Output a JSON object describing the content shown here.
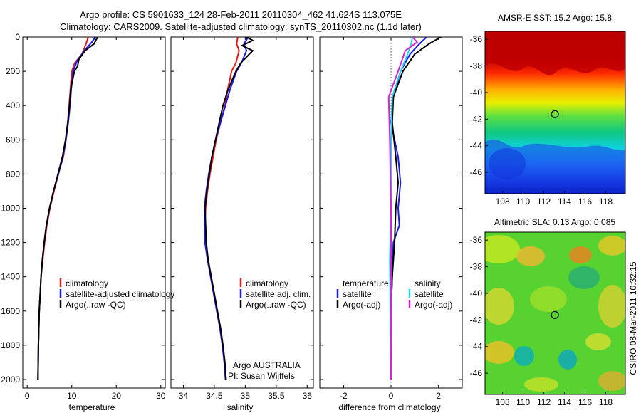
{
  "header": {
    "line1": "Argo profile: CS 5901633_124 28-Feb-2011 20110304_462 41.624S 113.075E",
    "line2": "Climatology: CARS2009. Satellite-adjusted climatology: synTS_20110302.nc (1.1d later)"
  },
  "side_label": "CSIRO 08-Mar-2011 10:32:15",
  "colors": {
    "red": "#e41a1a",
    "blue": "#1a1aee",
    "black": "#000000",
    "cyan": "#22d8e8",
    "magenta": "#d820d8"
  },
  "chart_data": [
    {
      "type": "line",
      "name": "temperature-profile",
      "xlabel": "temperature",
      "xlim": [
        -1,
        31
      ],
      "xticks": [
        0,
        10,
        20,
        30
      ],
      "ylim": [
        0,
        2050
      ],
      "yticks": [
        0,
        200,
        400,
        600,
        800,
        1000,
        1200,
        1400,
        1600,
        1800,
        2000
      ],
      "y_reversed": true,
      "legend": [
        "climatology",
        "satellite-adjusted climatology",
        "Argo(..raw -QC)"
      ],
      "series": [
        {
          "name": "climatology",
          "color": "red",
          "points": [
            [
              13.7,
              0
            ],
            [
              13.2,
              40
            ],
            [
              12.3,
              100
            ],
            [
              10.7,
              150
            ],
            [
              10.0,
              200
            ],
            [
              9.7,
              300
            ],
            [
              9.4,
              400
            ],
            [
              9.1,
              500
            ],
            [
              8.7,
              600
            ],
            [
              8.1,
              700
            ],
            [
              7.0,
              800
            ],
            [
              6.0,
              900
            ],
            [
              5.1,
              1000
            ],
            [
              4.4,
              1100
            ],
            [
              3.9,
              1200
            ],
            [
              3.5,
              1300
            ],
            [
              3.1,
              1400
            ],
            [
              2.9,
              1500
            ],
            [
              2.7,
              1600
            ],
            [
              2.6,
              1700
            ],
            [
              2.5,
              1800
            ],
            [
              2.45,
              1900
            ],
            [
              2.4,
              2000
            ]
          ]
        },
        {
          "name": "satellite-adjusted climatology",
          "color": "blue",
          "points": [
            [
              15.3,
              0
            ],
            [
              14.5,
              30
            ],
            [
              12.8,
              80
            ],
            [
              11.2,
              140
            ],
            [
              10.3,
              200
            ],
            [
              9.9,
              300
            ],
            [
              9.6,
              400
            ],
            [
              9.2,
              500
            ],
            [
              8.7,
              600
            ],
            [
              8.0,
              700
            ],
            [
              7.0,
              800
            ],
            [
              5.9,
              900
            ],
            [
              5.0,
              1000
            ],
            [
              4.3,
              1100
            ],
            [
              3.8,
              1200
            ],
            [
              3.4,
              1300
            ],
            [
              3.1,
              1400
            ],
            [
              2.9,
              1500
            ],
            [
              2.7,
              1600
            ],
            [
              2.6,
              1700
            ],
            [
              2.5,
              1800
            ],
            [
              2.45,
              1900
            ],
            [
              2.4,
              2000
            ]
          ]
        },
        {
          "name": "Argo(..raw -QC)",
          "color": "black",
          "points": [
            [
              15.8,
              0
            ],
            [
              15.0,
              40
            ],
            [
              13.0,
              80
            ],
            [
              11.6,
              130
            ],
            [
              11.3,
              170
            ],
            [
              10.6,
              200
            ],
            [
              9.8,
              300
            ],
            [
              9.5,
              400
            ],
            [
              9.1,
              500
            ],
            [
              8.6,
              600
            ],
            [
              7.9,
              700
            ],
            [
              6.9,
              800
            ],
            [
              5.9,
              900
            ],
            [
              5.0,
              1000
            ],
            [
              4.3,
              1100
            ],
            [
              3.8,
              1200
            ],
            [
              3.4,
              1300
            ],
            [
              3.1,
              1400
            ],
            [
              2.9,
              1500
            ],
            [
              2.7,
              1600
            ],
            [
              2.6,
              1700
            ],
            [
              2.5,
              1800
            ],
            [
              2.45,
              1900
            ],
            [
              2.4,
              2000
            ]
          ]
        }
      ]
    },
    {
      "type": "line",
      "name": "salinity-profile",
      "xlabel": "salinity",
      "xlim": [
        33.8,
        36.1
      ],
      "xticks": [
        34,
        34.5,
        35,
        35.5,
        36
      ],
      "ylim": [
        0,
        2050
      ],
      "y_reversed": true,
      "legend": [
        "climatology",
        "satellite adj. clim.",
        "Argo(..raw -QC)"
      ],
      "annotation": [
        "Argo AUSTRALIA",
        "PI: Susan Wijffels"
      ],
      "series": [
        {
          "name": "climatology",
          "color": "red",
          "points": [
            [
              34.88,
              0
            ],
            [
              34.86,
              40
            ],
            [
              34.9,
              80
            ],
            [
              34.85,
              150
            ],
            [
              34.78,
              200
            ],
            [
              34.72,
              300
            ],
            [
              34.67,
              400
            ],
            [
              34.6,
              500
            ],
            [
              34.53,
              600
            ],
            [
              34.48,
              700
            ],
            [
              34.43,
              800
            ],
            [
              34.39,
              900
            ],
            [
              34.36,
              1000
            ],
            [
              34.35,
              1100
            ],
            [
              34.36,
              1200
            ],
            [
              34.4,
              1300
            ],
            [
              34.45,
              1400
            ],
            [
              34.5,
              1500
            ],
            [
              34.55,
              1600
            ],
            [
              34.6,
              1700
            ],
            [
              34.64,
              1800
            ],
            [
              34.67,
              1900
            ],
            [
              34.69,
              2000
            ]
          ]
        },
        {
          "name": "satellite adj. clim.",
          "color": "blue",
          "points": [
            [
              35.05,
              0
            ],
            [
              34.98,
              40
            ],
            [
              35.02,
              80
            ],
            [
              34.94,
              150
            ],
            [
              34.86,
              200
            ],
            [
              34.76,
              300
            ],
            [
              34.68,
              400
            ],
            [
              34.6,
              500
            ],
            [
              34.52,
              600
            ],
            [
              34.46,
              700
            ],
            [
              34.41,
              800
            ],
            [
              34.37,
              900
            ],
            [
              34.34,
              1000
            ],
            [
              34.34,
              1100
            ],
            [
              34.35,
              1200
            ],
            [
              34.39,
              1300
            ],
            [
              34.44,
              1400
            ],
            [
              34.49,
              1500
            ],
            [
              34.54,
              1600
            ],
            [
              34.59,
              1700
            ],
            [
              34.63,
              1800
            ],
            [
              34.66,
              1900
            ],
            [
              34.68,
              2000
            ]
          ]
        },
        {
          "name": "Argo(..raw -QC)",
          "color": "black",
          "points": [
            [
              35.02,
              0
            ],
            [
              35.12,
              20
            ],
            [
              34.95,
              50
            ],
            [
              35.12,
              80
            ],
            [
              34.93,
              150
            ],
            [
              34.85,
              200
            ],
            [
              34.73,
              300
            ],
            [
              34.64,
              400
            ],
            [
              34.58,
              500
            ],
            [
              34.52,
              600
            ],
            [
              34.46,
              700
            ],
            [
              34.42,
              800
            ],
            [
              34.38,
              900
            ],
            [
              34.35,
              1000
            ],
            [
              34.36,
              1100
            ],
            [
              34.37,
              1200
            ],
            [
              34.4,
              1300
            ],
            [
              34.45,
              1400
            ],
            [
              34.5,
              1500
            ],
            [
              34.55,
              1600
            ],
            [
              34.6,
              1700
            ],
            [
              34.64,
              1800
            ],
            [
              34.67,
              1900
            ],
            [
              34.69,
              2000
            ]
          ]
        }
      ]
    },
    {
      "type": "line",
      "name": "difference-profile",
      "xlabel": "difference from climatology",
      "xlim": [
        -3,
        3
      ],
      "xticks": [
        -2,
        0,
        2
      ],
      "ylim": [
        0,
        2050
      ],
      "y_reversed": true,
      "legend_left": [
        "temperature",
        "satellite",
        "Argo(-adj)"
      ],
      "legend_right": [
        "salinity",
        "satellite",
        "Argo(-adj)"
      ],
      "series": [
        {
          "name": "temperature satellite",
          "color": "blue",
          "points": [
            [
              1.5,
              0
            ],
            [
              1.2,
              40
            ],
            [
              0.8,
              100
            ],
            [
              0.4,
              200
            ],
            [
              0.1,
              350
            ],
            [
              0.0,
              500
            ],
            [
              0.3,
              700
            ],
            [
              0.4,
              850
            ],
            [
              0.3,
              1000
            ],
            [
              0.35,
              1100
            ],
            [
              0.1,
              1200
            ],
            [
              0.05,
              1400
            ],
            [
              0.0,
              1600
            ],
            [
              0.0,
              2000
            ]
          ]
        },
        {
          "name": "temperature Argo(-adj)",
          "color": "black",
          "points": [
            [
              2.1,
              0
            ],
            [
              1.6,
              40
            ],
            [
              1.0,
              100
            ],
            [
              0.5,
              200
            ],
            [
              0.1,
              350
            ],
            [
              0.05,
              500
            ],
            [
              0.2,
              700
            ],
            [
              0.3,
              850
            ],
            [
              0.2,
              1000
            ],
            [
              0.15,
              1200
            ],
            [
              0.05,
              1400
            ],
            [
              0.0,
              1600
            ],
            [
              0.0,
              2000
            ]
          ]
        },
        {
          "name": "salinity satellite",
          "color": "cyan",
          "points": [
            [
              0.9,
              0
            ],
            [
              0.85,
              40
            ],
            [
              0.7,
              100
            ],
            [
              0.4,
              200
            ],
            [
              0.05,
              350
            ],
            [
              0.0,
              600
            ],
            [
              0.0,
              1000
            ],
            [
              -0.05,
              1300
            ],
            [
              0.0,
              2000
            ]
          ]
        },
        {
          "name": "salinity Argo(-adj)",
          "color": "magenta",
          "points": [
            [
              0.9,
              0
            ],
            [
              1.1,
              30
            ],
            [
              0.6,
              80
            ],
            [
              0.3,
              200
            ],
            [
              -0.1,
              350
            ],
            [
              -0.05,
              600
            ],
            [
              0.0,
              1000
            ],
            [
              0.0,
              1400
            ],
            [
              0.0,
              2000
            ]
          ]
        }
      ]
    },
    {
      "type": "heatmap",
      "name": "sst-map",
      "title": "AMSR-E SST: 15.2 Argo: 15.8",
      "xticks": [
        108,
        110,
        112,
        114,
        116,
        118
      ],
      "yticks": [
        -36,
        -38,
        -40,
        -42,
        -44,
        -46
      ],
      "xlim": [
        106.3,
        119.9
      ],
      "ylim": [
        -47.6,
        -35.4
      ],
      "marker": [
        113.075,
        -41.624
      ]
    },
    {
      "type": "heatmap",
      "name": "sla-map",
      "title": "Altimetric SLA: 0.13 Argo: 0.085",
      "xticks": [
        108,
        110,
        112,
        114,
        116,
        118
      ],
      "yticks": [
        -36,
        -38,
        -40,
        -42,
        -44,
        -46
      ],
      "xlim": [
        106.3,
        119.9
      ],
      "ylim": [
        -47.6,
        -35.4
      ],
      "marker": [
        113.075,
        -41.624
      ]
    }
  ]
}
